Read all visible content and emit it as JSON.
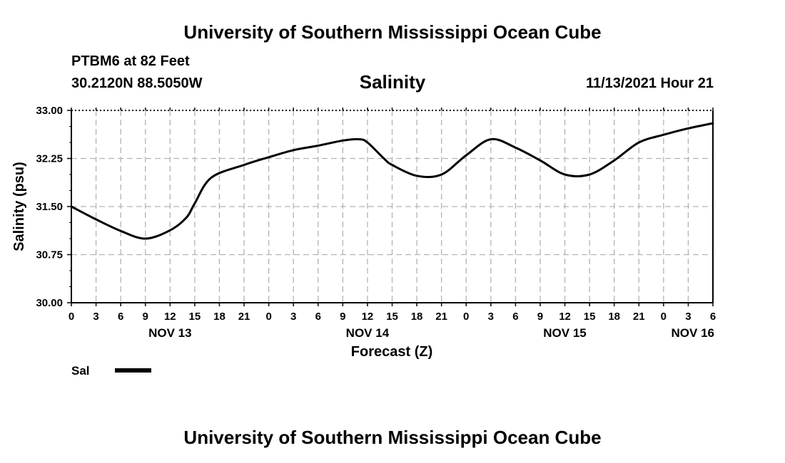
{
  "header": {
    "title": "University of Southern Mississippi Ocean Cube",
    "station": "PTBM6 at 82 Feet",
    "coordinates": "30.2120N  88.5050W",
    "timestamp": "11/13/2021 Hour 21"
  },
  "footer": {
    "title": "University of Southern Mississippi Ocean Cube"
  },
  "colors": {
    "line": "#000000",
    "grid": "#b3b3b3"
  },
  "chart_data": {
    "type": "line",
    "title": "Salinity",
    "xlabel": "Forecast (Z)",
    "ylabel": "Salinity (psu)",
    "ylim": [
      30.0,
      33.0
    ],
    "xlim": [
      0,
      78
    ],
    "x_unit": "hours since NOV 13 00Z",
    "yticks": [
      "30.00",
      "30.75",
      "31.50",
      "32.25",
      "33.00"
    ],
    "xtick_labels": [
      "0",
      "3",
      "6",
      "9",
      "12",
      "15",
      "18",
      "21",
      "0",
      "3",
      "6",
      "9",
      "12",
      "15",
      "18",
      "21",
      "0",
      "3",
      "6",
      "9",
      "12",
      "15",
      "18",
      "21",
      "0",
      "3",
      "6"
    ],
    "date_labels": [
      {
        "label": "NOV 13",
        "x": 12
      },
      {
        "label": "NOV 14",
        "x": 36
      },
      {
        "label": "NOV 15",
        "x": 60
      },
      {
        "label": "NOV 16",
        "x": 78
      }
    ],
    "grid": true,
    "legend": {
      "position": "bottom-left",
      "entries": [
        "Sal"
      ]
    },
    "series": [
      {
        "name": "Sal",
        "x": [
          0,
          3,
          6,
          9,
          12,
          14,
          15,
          17,
          21,
          24,
          27,
          30,
          33,
          35,
          36,
          38,
          39,
          42,
          45,
          48,
          51,
          54,
          57,
          60,
          63,
          66,
          69,
          72,
          75,
          78
        ],
        "y": [
          31.5,
          31.3,
          31.12,
          31.0,
          31.13,
          31.33,
          31.55,
          31.95,
          32.15,
          32.27,
          32.38,
          32.45,
          32.53,
          32.55,
          32.5,
          32.25,
          32.15,
          31.98,
          32.0,
          32.3,
          32.55,
          32.42,
          32.22,
          32.0,
          32.0,
          32.22,
          32.5,
          32.62,
          32.72,
          32.8
        ]
      }
    ]
  }
}
